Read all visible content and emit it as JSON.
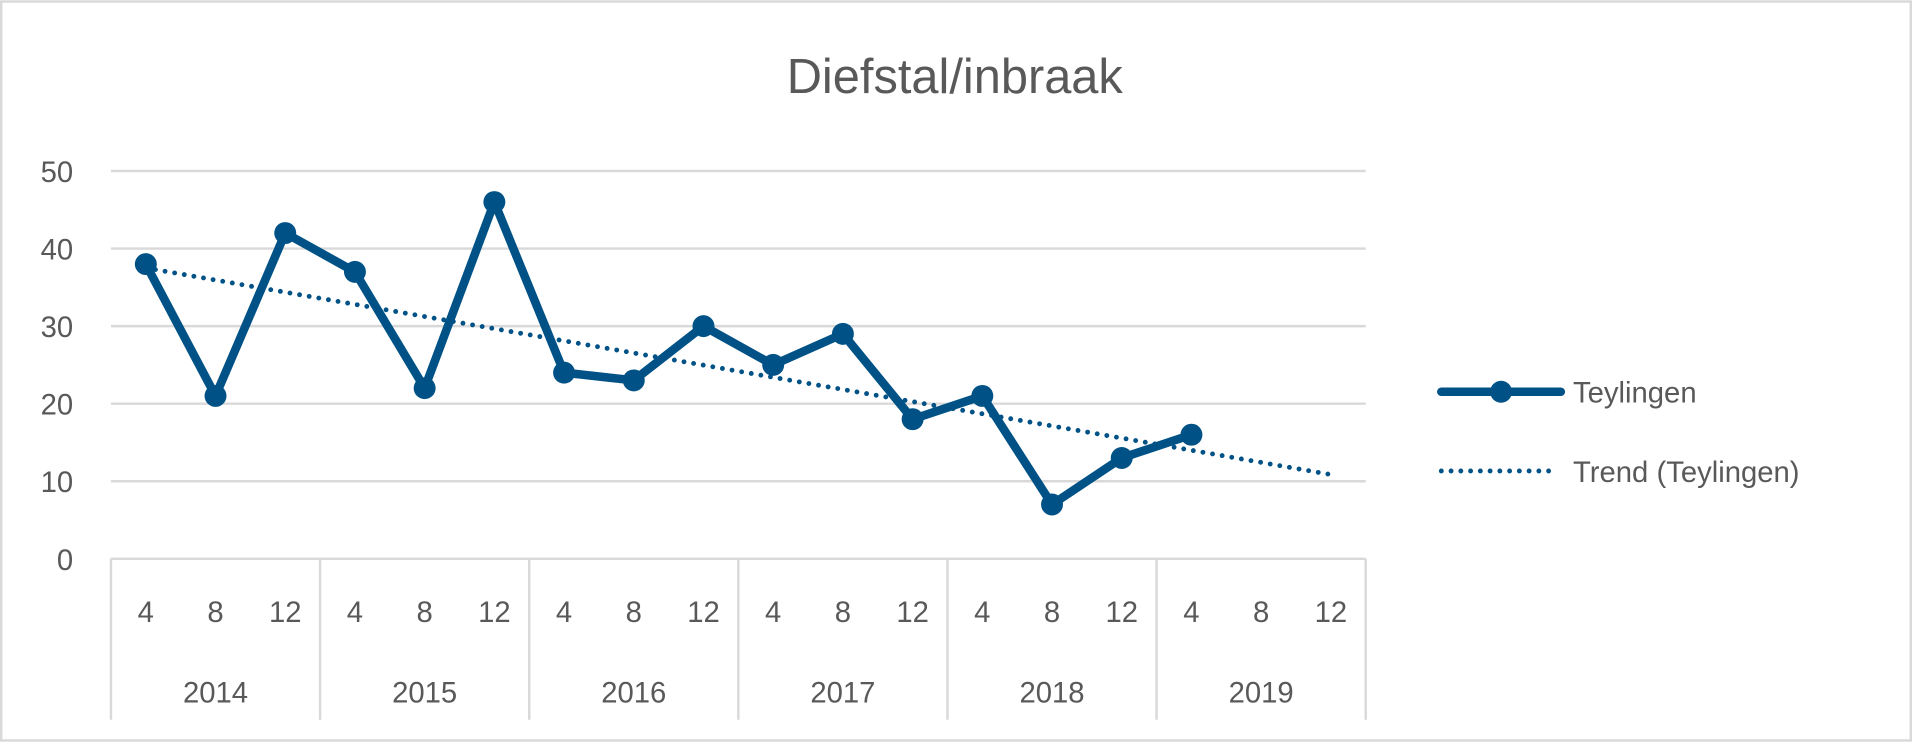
{
  "chart_data": {
    "type": "line",
    "title": "Diefstal/inbraak",
    "xlabel": "",
    "ylabel": "",
    "ylim": [
      0,
      50
    ],
    "yticks": [
      0,
      10,
      20,
      30,
      40,
      50
    ],
    "grid": true,
    "legend_position": "right",
    "categories": [
      "4",
      "8",
      "12",
      "4",
      "8",
      "12",
      "4",
      "8",
      "12",
      "4",
      "8",
      "12",
      "4",
      "8",
      "12",
      "4",
      "8",
      "12"
    ],
    "groups": [
      {
        "label": "2014",
        "count": 3
      },
      {
        "label": "2015",
        "count": 3
      },
      {
        "label": "2016",
        "count": 3
      },
      {
        "label": "2017",
        "count": 3
      },
      {
        "label": "2018",
        "count": 3
      },
      {
        "label": "2019",
        "count": 3
      }
    ],
    "series": [
      {
        "name": "Teylingen",
        "values": [
          38,
          21,
          42,
          37,
          22,
          46,
          24,
          23,
          30,
          25,
          29,
          18,
          21,
          7,
          13,
          16,
          null,
          null
        ],
        "color": "#005286",
        "marker": "circle"
      }
    ],
    "trendline": {
      "name": "Trend (Teylingen)",
      "type": "linear",
      "of_series": "Teylingen",
      "color": "#005286",
      "style": "dotted"
    }
  },
  "colors": {
    "text": "#595959",
    "grid": "#d9d9d9",
    "border": "#d9d9d9"
  }
}
